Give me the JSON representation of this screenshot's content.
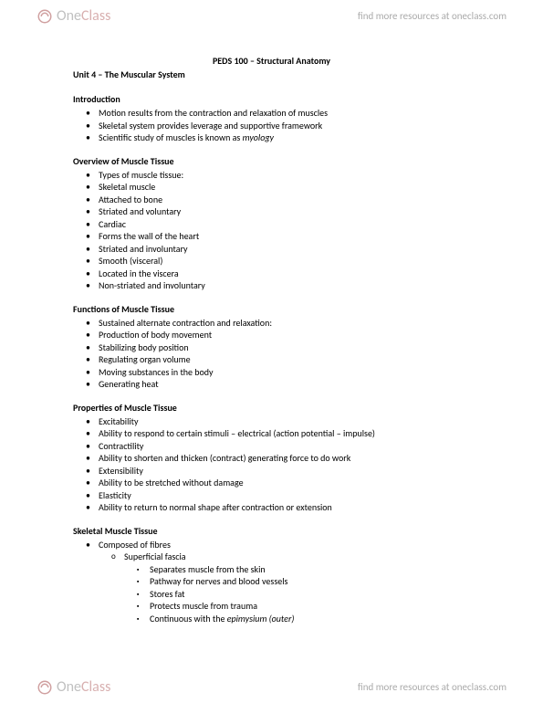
{
  "brand": {
    "one": "One",
    "class": "Class"
  },
  "tagline": "find more resources at oneclass.com",
  "course_title": "PEDS 100 – Structural Anatomy",
  "unit_title": "Unit 4 – The Muscular System",
  "sections": [
    {
      "title": "Introduction",
      "items": [
        {
          "text": "Motion results from the contraction and relaxation of muscles"
        },
        {
          "text": "Skeletal system provides leverage and supportive framework"
        },
        {
          "text": "Scientific study of muscles is known as ",
          "italic_suffix": "myology"
        }
      ]
    },
    {
      "title": "Overview of Muscle Tissue",
      "items": [
        {
          "text": "Types of muscle tissue:"
        },
        {
          "text": "Skeletal muscle"
        },
        {
          "text": "Attached to bone"
        },
        {
          "text": "Striated and voluntary"
        },
        {
          "text": "Cardiac"
        },
        {
          "text": "Forms the wall of the heart"
        },
        {
          "text": "Striated and involuntary"
        },
        {
          "text": "Smooth (visceral)"
        },
        {
          "text": "Located in the viscera"
        },
        {
          "text": "Non-striated and involuntary"
        }
      ]
    },
    {
      "title": "Functions of Muscle Tissue",
      "items": [
        {
          "text": "Sustained alternate contraction and relaxation:"
        },
        {
          "text": "Production of body movement"
        },
        {
          "text": "Stabilizing body position"
        },
        {
          "text": "Regulating organ volume"
        },
        {
          "text": "Moving substances in the body"
        },
        {
          "text": "Generating heat"
        }
      ]
    },
    {
      "title": "Properties of Muscle Tissue",
      "items": [
        {
          "text": "Excitability"
        },
        {
          "text": "Ability to respond to certain stimuli – electrical (action potential – impulse)"
        },
        {
          "text": "Contractility"
        },
        {
          "text": "Ability to shorten and thicken (contract) generating force to do work"
        },
        {
          "text": "Extensibility"
        },
        {
          "text": "Ability to be stretched without damage"
        },
        {
          "text": "Elasticity"
        },
        {
          "text": "Ability to return to normal shape after contraction or extension"
        }
      ]
    },
    {
      "title": "Skeletal Muscle Tissue",
      "items": [
        {
          "text": "Composed of fibres",
          "children": [
            {
              "text": "Superficial fascia",
              "children": [
                {
                  "text": "Separates muscle from the skin"
                },
                {
                  "text": "Pathway for nerves and blood vessels"
                },
                {
                  "text": "Stores fat"
                },
                {
                  "text": "Protects muscle from trauma"
                },
                {
                  "text": "Continuous with the ",
                  "italic_suffix": "epimysium (outer)"
                }
              ]
            }
          ]
        }
      ]
    }
  ]
}
